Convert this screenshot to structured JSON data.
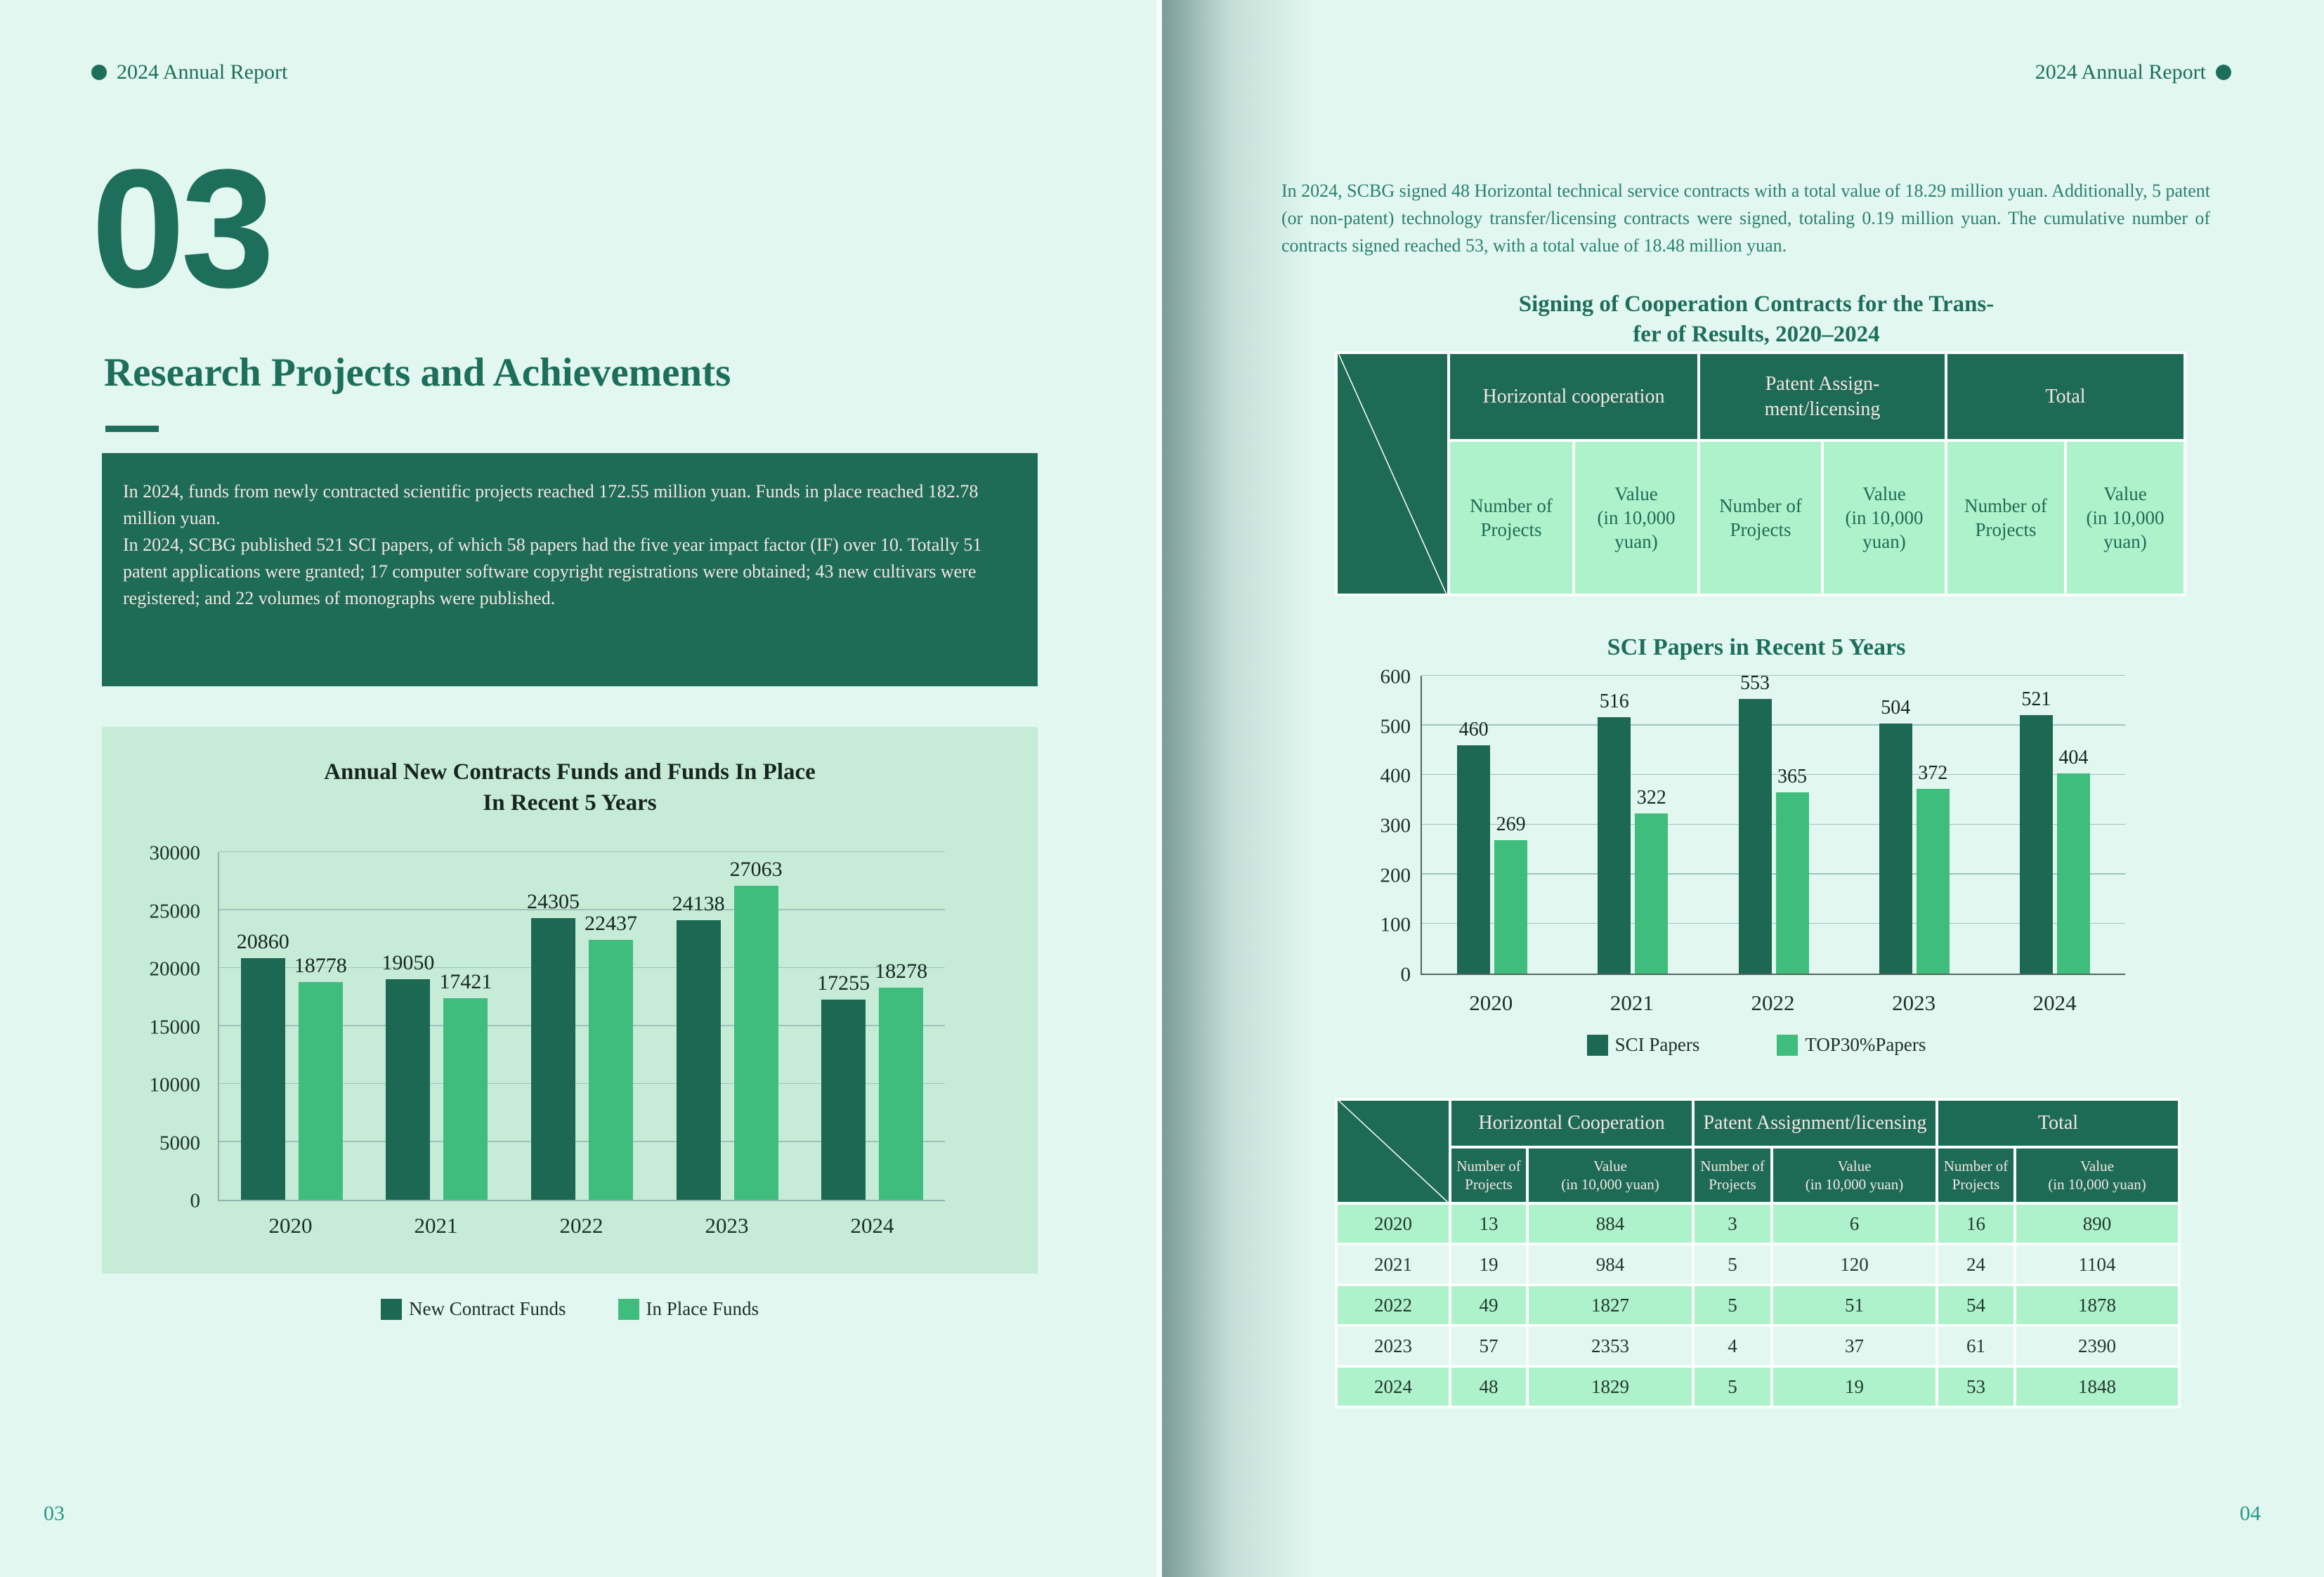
{
  "left_page": {
    "header_title": "2024 Annual Report",
    "chapter_number": "03",
    "chapter_title": "Research Projects and Achievements",
    "summary_paragraph_1": "In 2024, funds from newly contracted scientific projects reached 172.55 million yuan. Funds in place reached 182.78 million yuan.",
    "summary_paragraph_2": "In 2024, SCBG published 521 SCI papers, of which 58 papers had the five year impact factor (IF) over 10. Totally 51 patent applications were granted; 17 computer software copyright registrations were obtained; 43 new cultivars were registered; and 22 volumes of monographs were published.",
    "page_number": "03"
  },
  "right_page": {
    "header_title": "2024 Annual Report",
    "intro_paragraph": "In 2024, SCBG signed 48 Horizontal technical service contracts with a total value of 18.29 million yuan. Additionally, 5 patent (or non-patent) technology transfer/licensing contracts were signed, totaling 0.19 million yuan. The cumulative number of contracts signed reached 53, with a total value of 18.48 million yuan.",
    "contracts_title_line1": "Signing of Cooperation Contracts for the Trans-",
    "contracts_title_line2": "fer of Results, 2020–2024",
    "header_table": {
      "groups": [
        "Horizontal cooperation",
        "Patent Assign-\nment/licensing",
        "Total"
      ],
      "subheaders": [
        "Number of\nProjects",
        "Value\n(in 10,000\nyuan)",
        "Number of\nProjects",
        "Value\n(in 10,000\nyuan)",
        "Number of\nProjects",
        "Value\n(in 10,000\nyuan)"
      ]
    },
    "data_table": {
      "groups": [
        "Horizontal Cooperation",
        "Patent Assignment/licensing",
        "Total"
      ],
      "subheaders": [
        "Number of\nProjects",
        "Value\n(in 10,000 yuan)",
        "Number of\nProjects",
        "Value\n(in 10,000 yuan)",
        "Number of\nProjects",
        "Value\n(in 10,000 yuan)"
      ],
      "rows": [
        [
          "2020",
          "13",
          "884",
          "3",
          "6",
          "16",
          "890"
        ],
        [
          "2021",
          "19",
          "984",
          "5",
          "120",
          "24",
          "1104"
        ],
        [
          "2022",
          "49",
          "1827",
          "5",
          "51",
          "54",
          "1878"
        ],
        [
          "2023",
          "57",
          "2353",
          "4",
          "37",
          "61",
          "2390"
        ],
        [
          "2024",
          "48",
          "1829",
          "5",
          "19",
          "53",
          "1848"
        ]
      ]
    },
    "page_number": "04"
  },
  "chart_data": [
    {
      "type": "bar",
      "title": "Annual New Contracts Funds and Funds In Place\nIn Recent 5 Years",
      "categories": [
        "2020",
        "2021",
        "2022",
        "2023",
        "2024"
      ],
      "series": [
        {
          "name": "New Contract Funds",
          "color": "#1d6852",
          "values": [
            20860,
            19050,
            24305,
            24138,
            17255
          ]
        },
        {
          "name": "In Place Funds",
          "color": "#3ebd7d",
          "values": [
            18778,
            17421,
            22437,
            27063,
            18278
          ]
        }
      ],
      "ylabel": "",
      "xlabel": "",
      "ylim": [
        0,
        30000
      ],
      "ytick_step": 5000,
      "grid": true,
      "legend_position": "bottom"
    },
    {
      "type": "bar",
      "title": "SCI Papers in Recent 5 Years",
      "categories": [
        "2020",
        "2021",
        "2022",
        "2023",
        "2024"
      ],
      "series": [
        {
          "name": "SCI Papers",
          "color": "#1d6852",
          "values": [
            460,
            516,
            553,
            504,
            521
          ]
        },
        {
          "name": "TOP30%Papers",
          "color": "#3ebd7d",
          "values": [
            269,
            322,
            365,
            372,
            404
          ]
        }
      ],
      "ylabel": "",
      "xlabel": "",
      "ylim": [
        0,
        600
      ],
      "ytick_step": 100,
      "grid": true,
      "legend_position": "bottom"
    }
  ]
}
